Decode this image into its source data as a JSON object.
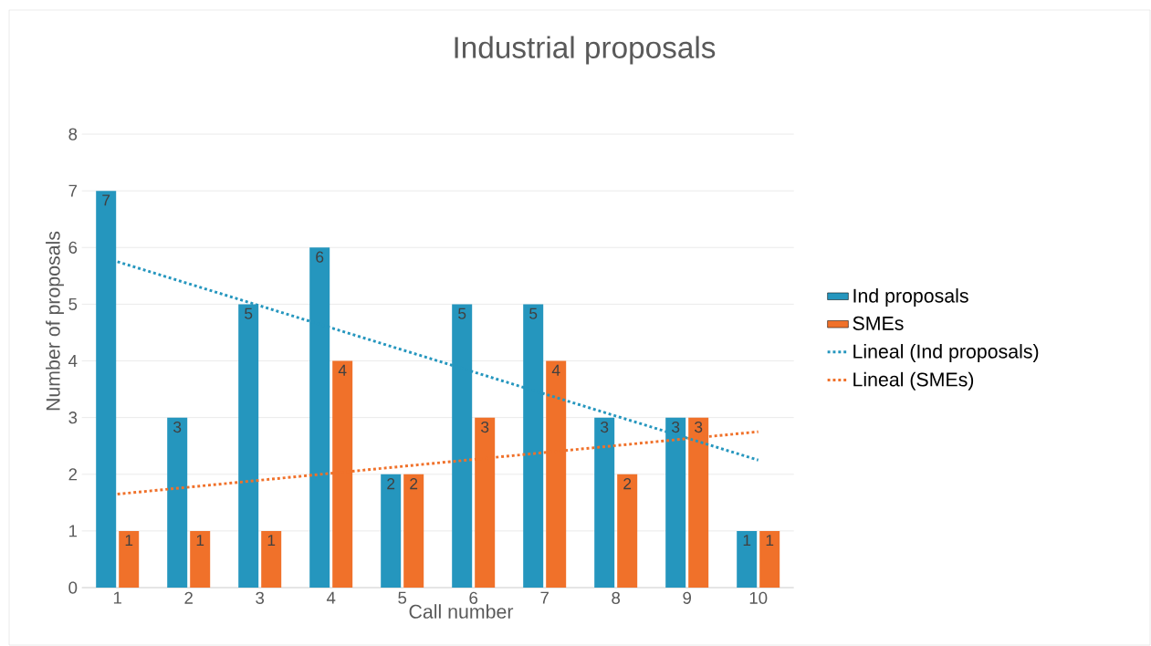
{
  "chart_data": {
    "type": "bar",
    "title": "Industrial proposals",
    "xlabel": "Call number",
    "ylabel": "Number of proposals",
    "categories": [
      "1",
      "2",
      "3",
      "4",
      "5",
      "6",
      "7",
      "8",
      "9",
      "10"
    ],
    "series": [
      {
        "name": "Ind proposals",
        "color": "#2596be",
        "values": [
          7,
          3,
          5,
          6,
          2,
          5,
          5,
          3,
          3,
          1
        ],
        "value_labels": [
          "7",
          "3",
          "5",
          "6",
          "2",
          "5",
          "5",
          "3",
          "3",
          "1"
        ]
      },
      {
        "name": "SMEs",
        "color": "#f0712a",
        "values": [
          1,
          1,
          1,
          4,
          2,
          3,
          4,
          2,
          3,
          1
        ],
        "value_labels": [
          "1",
          "1",
          "1",
          "4",
          "2",
          "3",
          "4",
          "2",
          "3",
          "1"
        ]
      },
      {
        "name": "Lineal (Ind proposals)",
        "type": "line",
        "line_style": "dotted",
        "color": "#2596be",
        "x": [
          "1",
          "10"
        ],
        "values": [
          5.75,
          2.25
        ]
      },
      {
        "name": "Lineal (SMEs)",
        "type": "line",
        "line_style": "dotted",
        "color": "#f0712a",
        "x": [
          "1",
          "10"
        ],
        "values": [
          1.65,
          2.75
        ]
      }
    ],
    "ylim": [
      0,
      8
    ],
    "yticks": [
      0,
      1,
      2,
      3,
      4,
      5,
      6,
      7,
      8
    ],
    "grid": "y",
    "legend": "right"
  }
}
